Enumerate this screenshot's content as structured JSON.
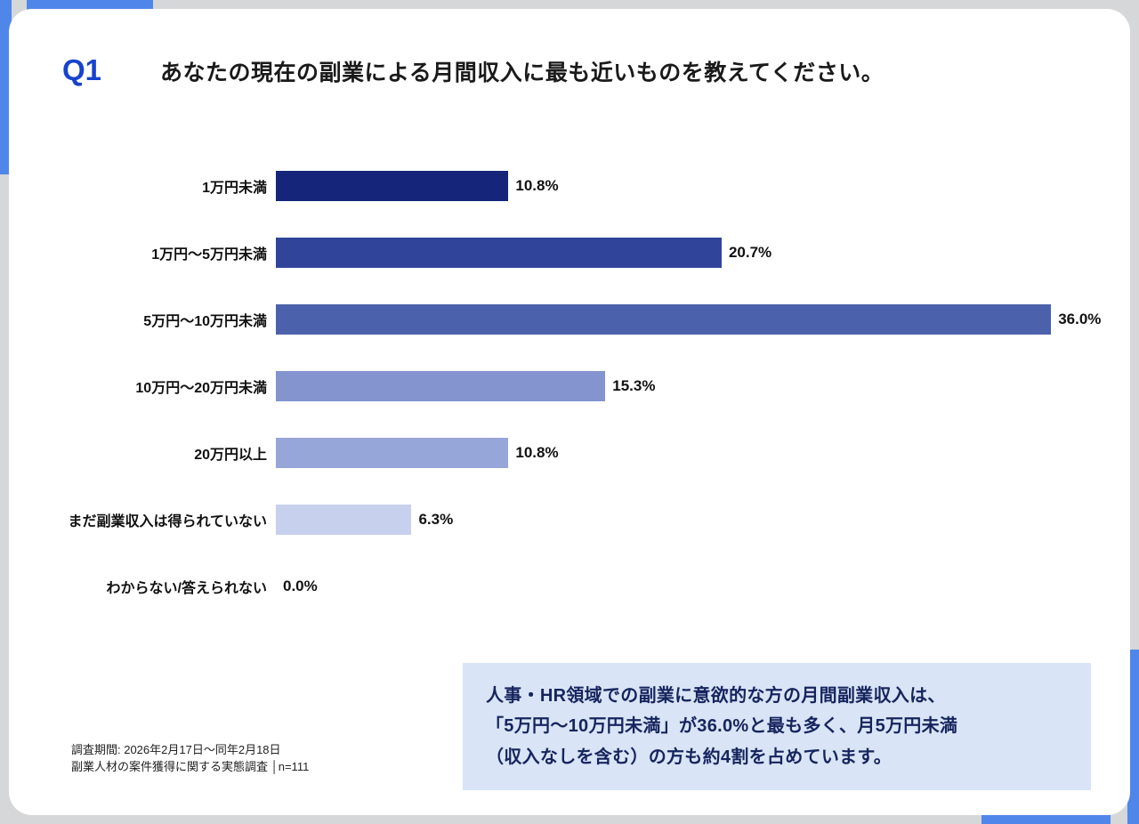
{
  "header": {
    "q_label": "Q1",
    "title": "あなたの現在の副業による月間収入に最も近いものを教えてください。"
  },
  "chart_data": {
    "type": "bar",
    "orientation": "horizontal",
    "title": "あなたの現在の副業による月間収入に最も近いものを教えてください。",
    "categories": [
      "1万円未満",
      "1万円〜5万円未満",
      "5万円〜10万円未満",
      "10万円〜20万円未満",
      "20万円以上",
      "まだ副業収入は得られていない",
      "わからない/答えられない"
    ],
    "values": [
      10.8,
      20.7,
      36.0,
      15.3,
      10.8,
      6.3,
      0.0
    ],
    "value_labels": [
      "10.8%",
      "20.7%",
      "36.0%",
      "15.3%",
      "10.8%",
      "6.3%",
      "0.0%"
    ],
    "bar_colors": [
      "#14257a",
      "#30459a",
      "#4c61ab",
      "#8394cf",
      "#97a6d8",
      "#c7d0ed",
      "#c7d0ed"
    ],
    "xlim": [
      0,
      36.8
    ],
    "grid": false,
    "legend": false
  },
  "callout": {
    "lines": [
      "人事・HR領域での副業に意欲的な方の月間副業収入は、",
      "「5万円〜10万円未満」が36.0%と最も多く、月5万円未満",
      "（収入なしを含む）の方も約4割を占めています。"
    ]
  },
  "footnote": {
    "line1": "調査期間: 2026年2月17日〜同年2月18日",
    "line2": "副業人材の案件獲得に関する実態調査 │n=111"
  },
  "colors": {
    "accent": "#4f86ea",
    "q_label": "#1743cc",
    "callout_bg": "#d9e4f6",
    "callout_text": "#16245e"
  }
}
